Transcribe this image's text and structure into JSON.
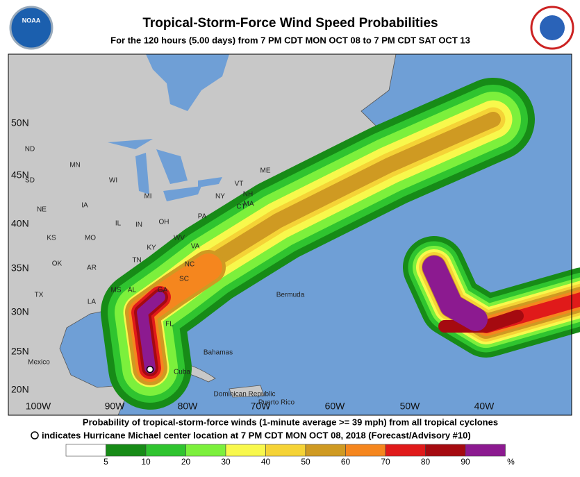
{
  "header": {
    "title": "Tropical-Storm-Force Wind Speed Probabilities",
    "subtitle": "For the 120 hours (5.00 days) from 7 PM CDT MON OCT 08 to 7 PM CDT SAT OCT 13",
    "logo_left": "NOAA"
  },
  "map": {
    "longitudes": [
      "100W",
      "90W",
      "80W",
      "70W",
      "60W",
      "50W",
      "40W"
    ],
    "latitudes": [
      "50N",
      "45N",
      "40N",
      "35N",
      "30N",
      "25N",
      "20N"
    ],
    "places": [
      "ND",
      "SD",
      "MN",
      "WI",
      "MI",
      "NE",
      "IA",
      "IL",
      "IN",
      "OH",
      "PA",
      "NY",
      "VT",
      "NH",
      "ME",
      "MA",
      "CT",
      "KS",
      "MO",
      "KY",
      "WV",
      "VA",
      "OK",
      "AR",
      "TN",
      "NC",
      "SC",
      "TX",
      "LA",
      "MS",
      "AL",
      "GA",
      "FL",
      "Mexico",
      "Cuba",
      "Bahamas",
      "Bermuda",
      "Dominican Republic",
      "Puerto Rico"
    ]
  },
  "footer": {
    "line1": "Probability of tropical-storm-force winds (1-minute average >= 39 mph) from all tropical cyclones",
    "line2": "indicates Hurricane Michael center location at 7 PM CDT MON OCT 08, 2018 (Forecast/Advisory #10)"
  },
  "legend": {
    "colors": [
      "#ffffff",
      "#178b17",
      "#2fc42f",
      "#7cf03c",
      "#f8f84c",
      "#f5d336",
      "#cf9a22",
      "#f5861e",
      "#e01a1a",
      "#a50a10",
      "#8c1a90"
    ],
    "labels": [
      5,
      10,
      20,
      30,
      40,
      50,
      60,
      70,
      80,
      90
    ],
    "unit": "%"
  }
}
